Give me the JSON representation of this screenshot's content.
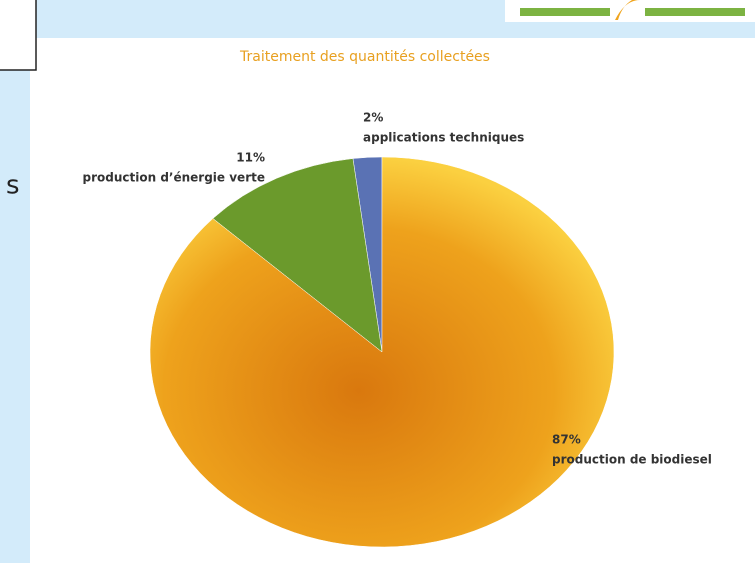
{
  "side_text": "s",
  "chart_data": {
    "type": "pie",
    "title": "Traitement des quantités collectées",
    "categories": [
      "applications techniques",
      "production d’énergie verte",
      "production de biodiesel"
    ],
    "values": [
      2,
      11,
      87
    ],
    "value_labels": [
      "2%",
      "11%",
      "87%"
    ],
    "colors": [
      "#5a72b4",
      "#6b9a2c",
      "#f0a51e"
    ],
    "direction": "counterclockwise"
  }
}
